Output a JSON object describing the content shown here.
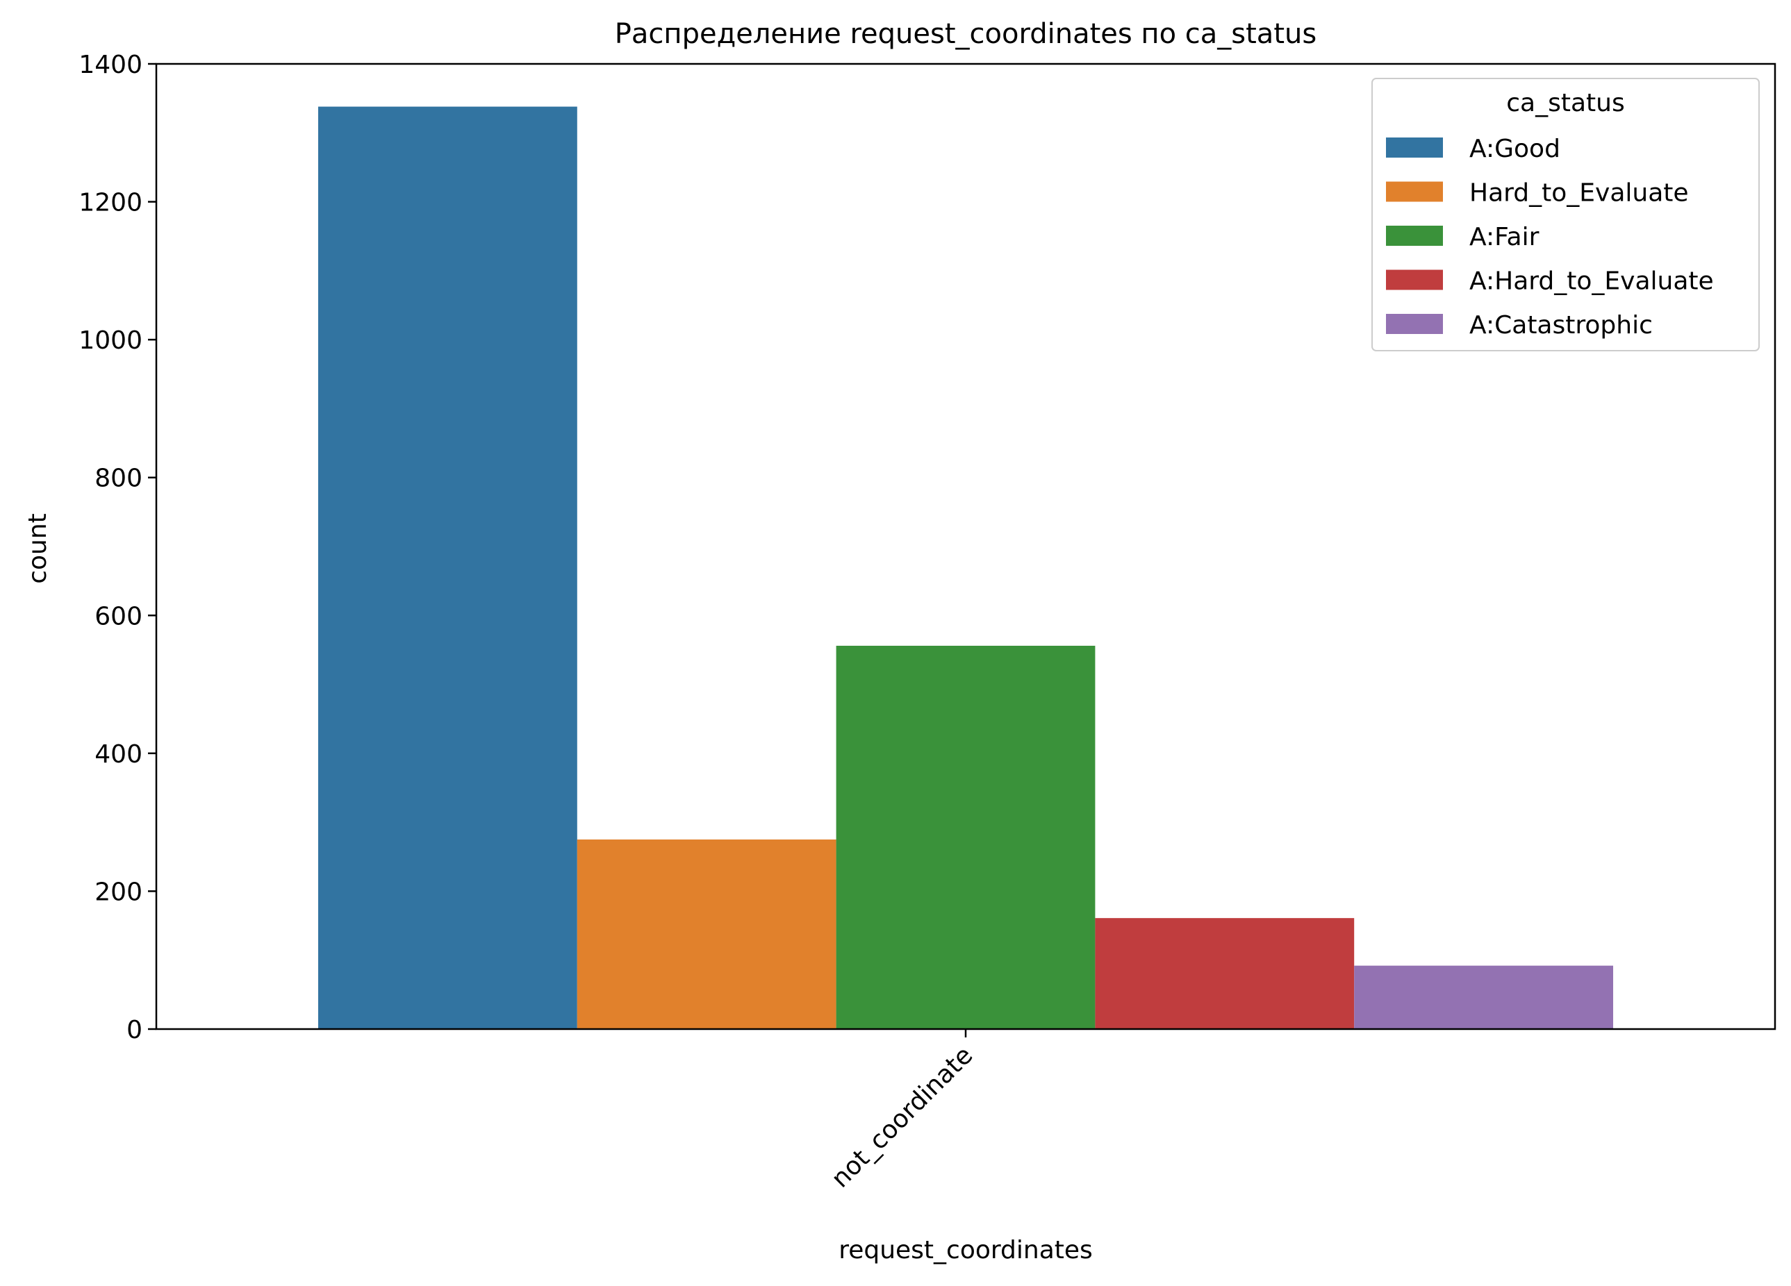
{
  "chart_data": {
    "type": "bar",
    "title": "Распределение request_coordinates по ca_status",
    "xlabel": "request_coordinates",
    "ylabel": "count",
    "categories": [
      "not_coordinate"
    ],
    "ylim": [
      0,
      1400
    ],
    "yticks": [
      0,
      200,
      400,
      600,
      800,
      1000,
      1200,
      1400
    ],
    "grid": false,
    "legend": {
      "title": "ca_status",
      "placement": "top-right"
    },
    "series": [
      {
        "name": "A:Good",
        "color": "#3274a1",
        "values": [
          1338
        ]
      },
      {
        "name": "Hard_to_Evaluate",
        "color": "#e1812c",
        "values": [
          275
        ]
      },
      {
        "name": "A:Fair",
        "color": "#3a923a",
        "values": [
          556
        ]
      },
      {
        "name": "A:Hard_to_Evaluate",
        "color": "#c03d3e",
        "values": [
          161
        ]
      },
      {
        "name": "A:Catastrophic",
        "color": "#9372b2",
        "values": [
          92
        ]
      }
    ]
  }
}
